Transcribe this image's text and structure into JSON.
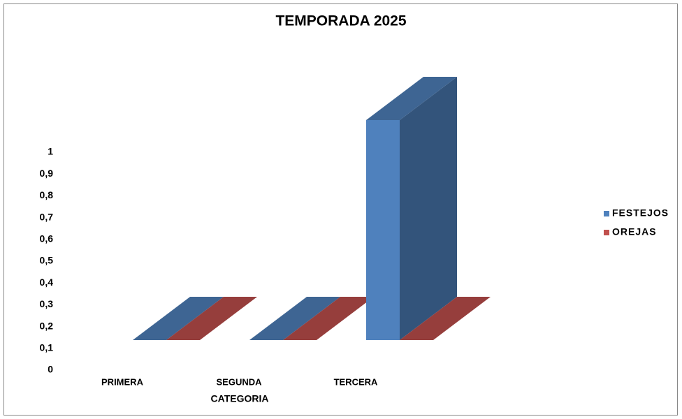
{
  "chart_data": {
    "type": "bar3d",
    "title": "TEMPORADA 2025",
    "x_label": "CATEGORIA",
    "categories": [
      "PRIMERA",
      "SEGUNDA",
      "TERCERA"
    ],
    "series": [
      {
        "name": "FESTEJOS",
        "color": "#4f81bd",
        "values": [
          0,
          0,
          1
        ]
      },
      {
        "name": "OREJAS",
        "color": "#c0504d",
        "values": [
          0,
          0,
          0
        ]
      }
    ],
    "ylim": [
      0,
      1
    ],
    "yticks": [
      0,
      {
        "value": 0.1,
        "label": "0,1"
      },
      {
        "value": 0.2,
        "label": "0,2"
      },
      {
        "value": 0.3,
        "label": "0,3"
      },
      {
        "value": 0.4,
        "label": "0,4"
      },
      {
        "value": 0.5,
        "label": "0,5"
      },
      {
        "value": 0.6,
        "label": "0,6"
      },
      {
        "value": 0.7,
        "label": "0,7"
      },
      {
        "value": 0.8,
        "label": "0,8"
      },
      {
        "value": 0.9,
        "label": "0,9"
      },
      1
    ],
    "legend": "right"
  }
}
